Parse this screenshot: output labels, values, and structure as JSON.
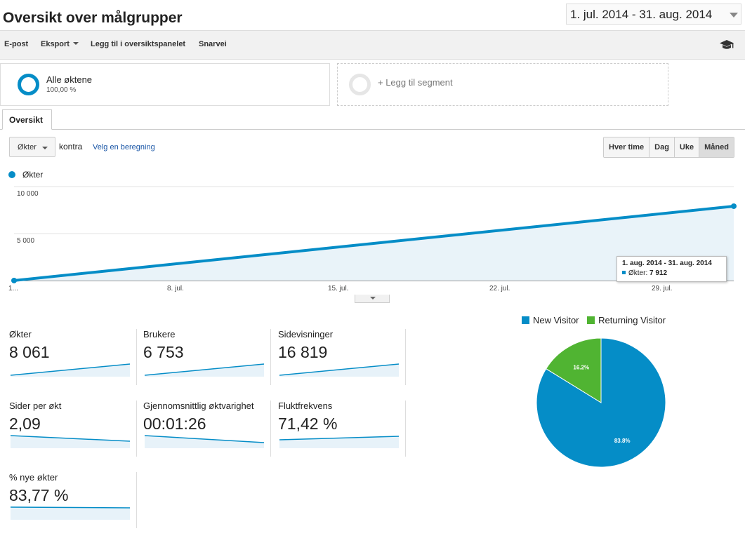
{
  "header": {
    "title": "Oversikt over målgrupper",
    "date_range": "1. jul. 2014 - 31. aug. 2014"
  },
  "toolbar": {
    "email": "E-post",
    "export": "Eksport",
    "add_dashboard": "Legg til i oversiktspanelet",
    "shortcut": "Snarvei",
    "icon": "graduation-cap-icon"
  },
  "segments": {
    "active": {
      "name": "Alle øktene",
      "pct": "100,00 %"
    },
    "add_label": "+ Legg til segment"
  },
  "tabs": [
    {
      "label": "Oversikt"
    }
  ],
  "chart_controls": {
    "metric": "Økter",
    "versus": "kontra",
    "select_metric": "Velg en beregning",
    "granularity": [
      "Hver time",
      "Dag",
      "Uke",
      "Måned"
    ],
    "active_granularity": "Måned"
  },
  "chart_data": [
    {
      "type": "line",
      "series": [
        {
          "name": "Økter",
          "color": "#058dc7",
          "values": [
            4,
            7912
          ]
        }
      ],
      "x": [
        "2014-07-01",
        "2014-08-01"
      ],
      "ylim": [
        0,
        10000
      ],
      "yticks": [
        "10 000",
        "5 000"
      ],
      "xticks": [
        "1...",
        "8. jul.",
        "15. jul.",
        "22. jul.",
        "29. jul."
      ],
      "grid": true,
      "legend": "top-left",
      "tooltip": {
        "date": "1. aug. 2014 - 31. aug. 2014",
        "label": "Økter:",
        "value": "7 912"
      }
    },
    {
      "type": "pie",
      "series": [
        {
          "name": "New Visitor",
          "value": 83.8,
          "label": "83.8%",
          "color": "#058dc7"
        },
        {
          "name": "Returning Visitor",
          "value": 16.2,
          "label": "16.2%",
          "color": "#50b432"
        }
      ],
      "legend": "top"
    }
  ],
  "kpis": [
    {
      "label": "Økter",
      "value": "8 061",
      "trend": "up"
    },
    {
      "label": "Brukere",
      "value": "6 753",
      "trend": "up"
    },
    {
      "label": "Sidevisninger",
      "value": "16 819",
      "trend": "up"
    },
    {
      "label": "Sider per økt",
      "value": "2,09",
      "trend": "down"
    },
    {
      "label": "Gjennomsnittlig øktvarighet",
      "value": "00:01:26",
      "trend": "down"
    },
    {
      "label": "Fluktfrekvens",
      "value": "71,42 %",
      "trend": "slight-up"
    },
    {
      "label": "% nye økter",
      "value": "83,77 %",
      "trend": "flat"
    }
  ]
}
